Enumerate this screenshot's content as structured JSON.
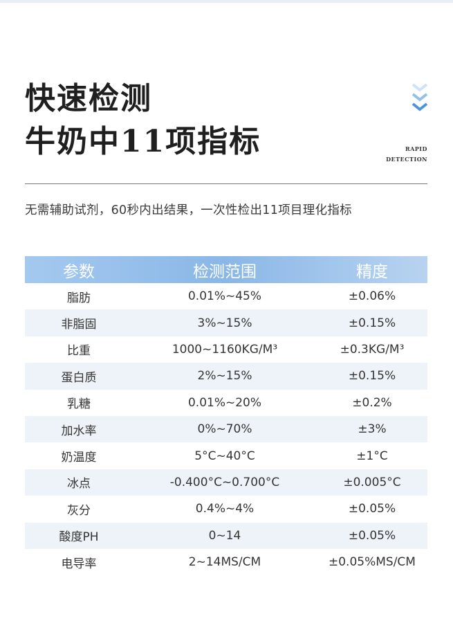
{
  "header": {
    "title_line1": "快速检测",
    "title_line2": "牛奶中11项指标",
    "badge_line1": "RAPID",
    "badge_line2": "DETECTION",
    "subtitle": "无需辅助试剂，60秒内出结果，一次性检出11项目理化指标",
    "accent_color": "#5aa2e6"
  },
  "table": {
    "columns": [
      "参数",
      "检测范围",
      "精度"
    ],
    "rows": [
      [
        "脂肪",
        "0.01%~45%",
        "±0.06%"
      ],
      [
        "非脂固",
        "3%~15%",
        "±0.15%"
      ],
      [
        "比重",
        "1000~1160KG/M³",
        "±0.3KG/M³"
      ],
      [
        "蛋白质",
        "2%~15%",
        "±0.15%"
      ],
      [
        "乳糖",
        "0.01%~20%",
        "±0.2%"
      ],
      [
        "加水率",
        "0%~70%",
        "±3%"
      ],
      [
        "奶温度",
        "5°C~40°C",
        "±1°C"
      ],
      [
        "冰点",
        "-0.400°C~0.700°C",
        "±0.005°C"
      ],
      [
        "灰分",
        "0.4%~4%",
        "±0.05%"
      ],
      [
        "酸度PH",
        "0~14",
        "±0.05%"
      ],
      [
        "电导率",
        "2~14MS/CM",
        "±0.05%MS/CM"
      ]
    ]
  }
}
